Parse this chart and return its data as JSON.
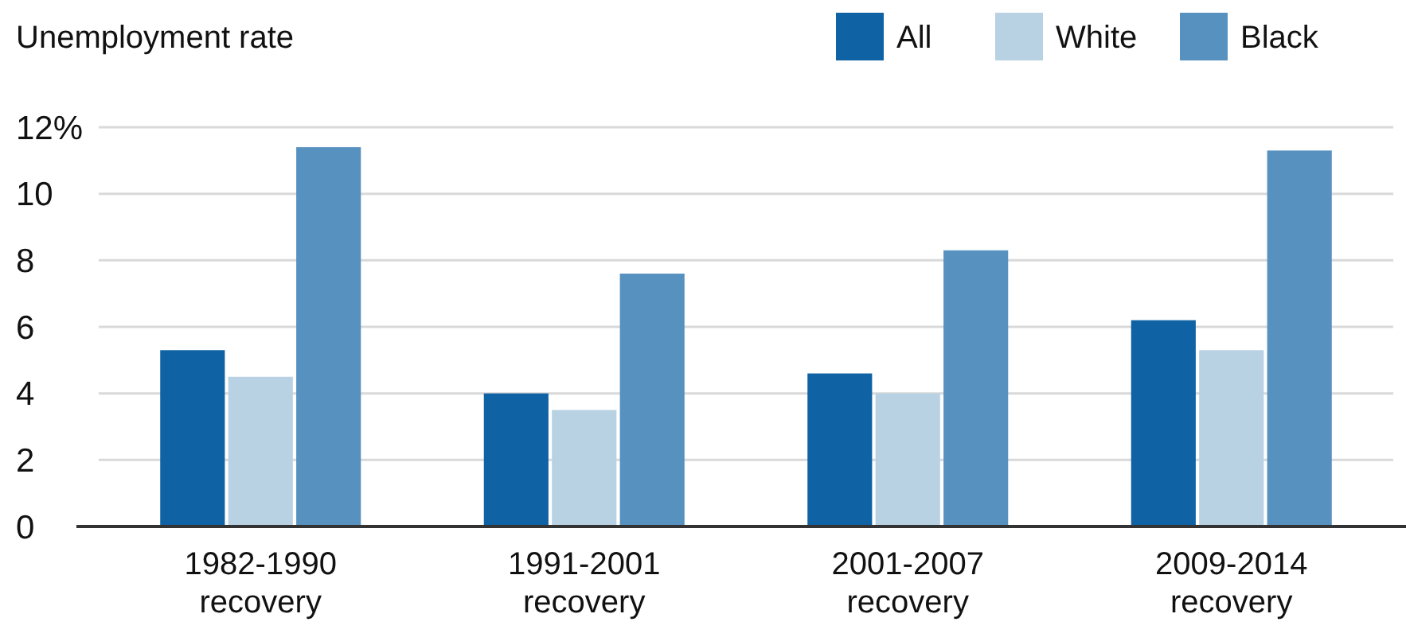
{
  "chart_data": {
    "type": "bar",
    "ylabel": "Unemployment rate",
    "categories": [
      "1982-1990\nrecovery",
      "1991-2001\nrecovery",
      "2001-2007\nrecovery",
      "2009-2014\nrecovery"
    ],
    "series": [
      {
        "name": "All",
        "color": "#0f62a4",
        "values": [
          5.3,
          4.0,
          4.6,
          6.2
        ]
      },
      {
        "name": "White",
        "color": "#b8d2e4",
        "values": [
          4.5,
          3.5,
          4.0,
          5.3
        ]
      },
      {
        "name": "Black",
        "color": "#5791c0",
        "values": [
          11.4,
          7.6,
          8.3,
          11.3
        ]
      }
    ],
    "ylim": [
      0,
      12
    ],
    "yticks": [
      0,
      2,
      4,
      6,
      8,
      {
        "value": 10,
        "label": "10"
      },
      {
        "value": 12,
        "label": "12%"
      }
    ],
    "grid": "y",
    "legend": "top right"
  }
}
